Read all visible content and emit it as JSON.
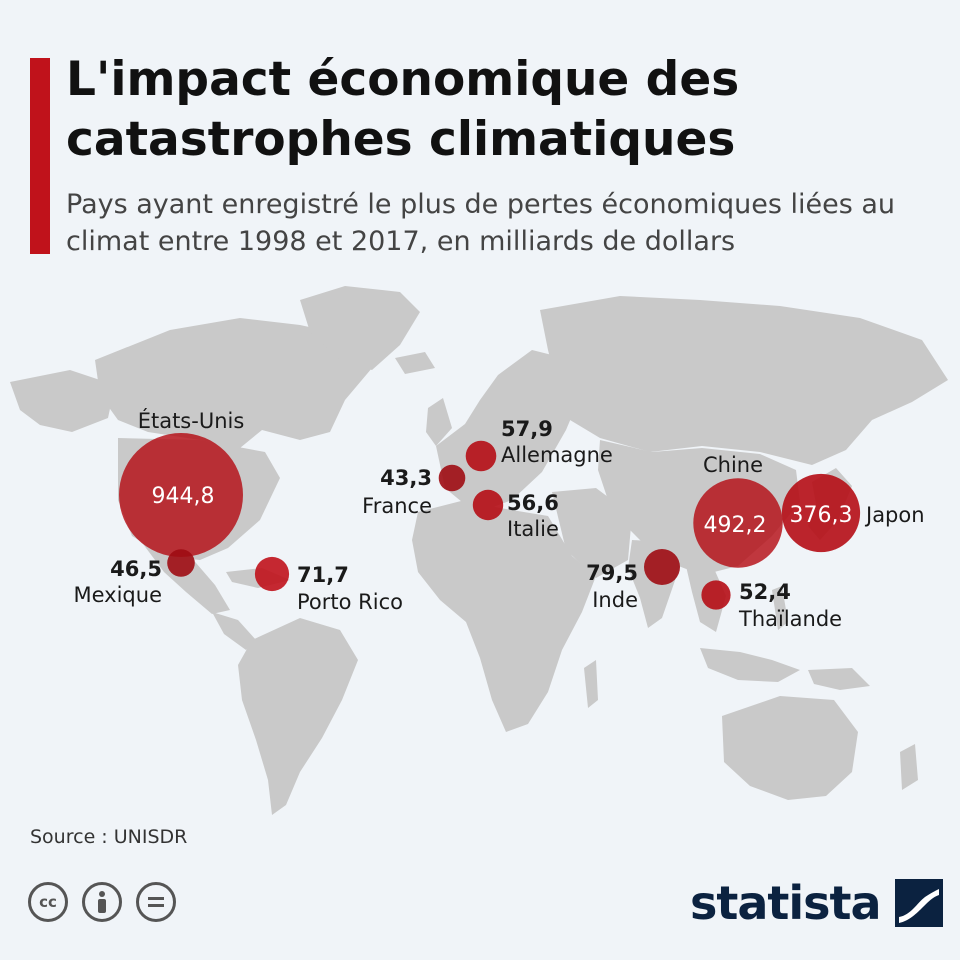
{
  "title": "L'impact économique des catastrophes climatiques",
  "subtitle": "Pays ayant enregistré le plus de pertes économiques liées au climat entre 1998 et 2017, en milliards de dollars",
  "source": "Source : UNISDR",
  "brand": "statista",
  "license_icons": [
    "cc-icon",
    "attribution-icon",
    "no-derivatives-icon"
  ],
  "colors": {
    "accent": "#c0121b",
    "bubble": "#b50d15",
    "land": "#c9c9c9",
    "background": "#f0f4f8"
  },
  "unit": "milliards de dollars",
  "countries": [
    {
      "name": "États-Unis",
      "value": 944.8,
      "label": "944,8"
    },
    {
      "name": "Chine",
      "value": 492.2,
      "label": "492,2"
    },
    {
      "name": "Japon",
      "value": 376.3,
      "label": "376,3"
    },
    {
      "name": "Inde",
      "value": 79.5,
      "label": "79,5"
    },
    {
      "name": "Porto Rico",
      "value": 71.7,
      "label": "71,7"
    },
    {
      "name": "Allemagne",
      "value": 57.9,
      "label": "57,9"
    },
    {
      "name": "Italie",
      "value": 56.6,
      "label": "56,6"
    },
    {
      "name": "Thaïlande",
      "value": 52.4,
      "label": "52,4"
    },
    {
      "name": "Mexique",
      "value": 46.5,
      "label": "46,5"
    },
    {
      "name": "France",
      "value": 43.3,
      "label": "43,3"
    }
  ]
}
